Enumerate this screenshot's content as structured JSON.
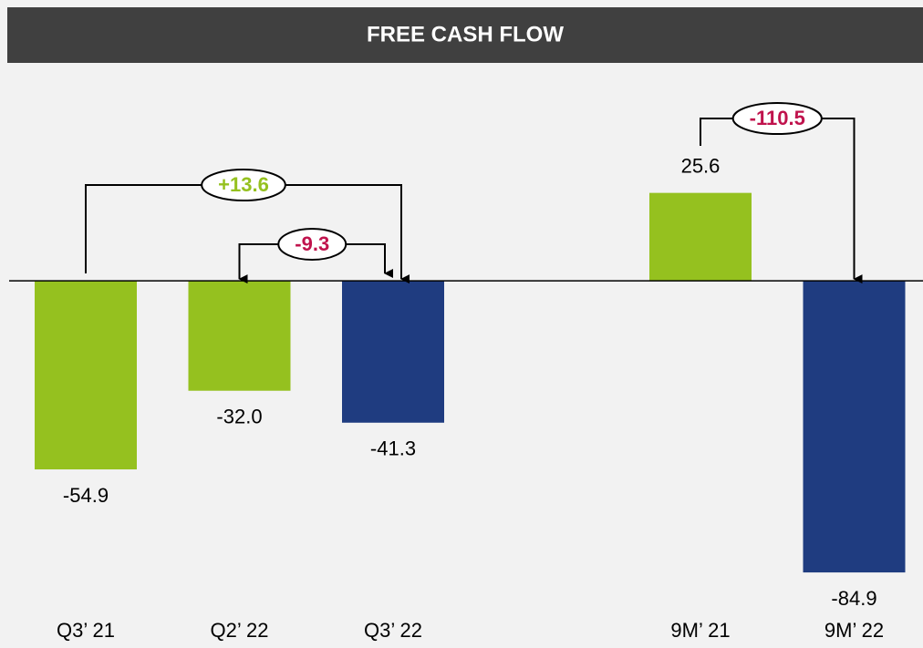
{
  "chart_data": {
    "type": "bar",
    "title": "FREE CASH FLOW",
    "categories": [
      "Q3’ 21",
      "Q2’ 22",
      "Q3’ 22",
      null,
      "9M’ 21",
      "9M’ 22"
    ],
    "values": [
      -54.9,
      -32.0,
      -41.3,
      null,
      25.6,
      -84.9
    ],
    "value_labels": [
      "-54.9",
      "-32.0",
      "-41.3",
      null,
      "25.6",
      "-84.9"
    ],
    "colors": [
      "#95c11f",
      "#95c11f",
      "#1f3c80",
      null,
      "#95c11f",
      "#1f3c80"
    ],
    "ylim": [
      -100,
      60
    ],
    "annotations": [
      {
        "text": "+13.6",
        "from": 0,
        "to": 2,
        "color": "#95c11f"
      },
      {
        "text": "-9.3",
        "from": 2,
        "to": 1,
        "color": "#c0134d"
      },
      {
        "text": "-110.5",
        "from": 4,
        "to": 5,
        "color": "#c0134d"
      }
    ]
  }
}
